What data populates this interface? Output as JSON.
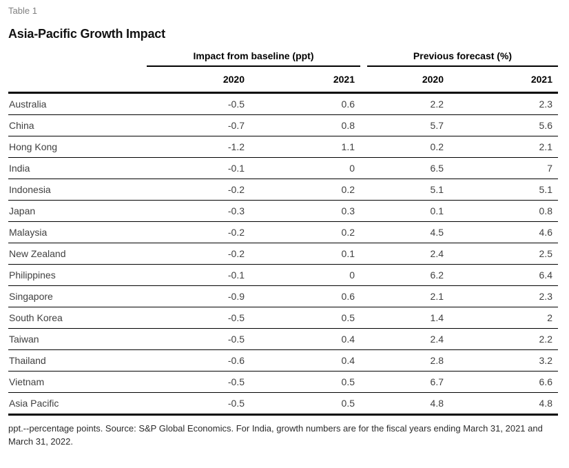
{
  "page": {
    "eyebrow": "Table 1",
    "title": "Asia-Pacific Growth Impact",
    "footnote": "ppt.--percentage points. Source: S&P Global Economics. For India, growth numbers are for the fiscal years ending March 31, 2021 and March 31, 2022."
  },
  "colors": {
    "rule_black": "#000000",
    "body_text_gray": "#404040",
    "eyebrow_gray": "#7f7f7f"
  },
  "table": {
    "col_groups": [
      {
        "label": "Impact from baseline (ppt)",
        "years": [
          "2020",
          "2021"
        ]
      },
      {
        "label": "Previous forecast (%)",
        "years": [
          "2020",
          "2021"
        ]
      }
    ],
    "rows": [
      {
        "country": "Australia",
        "values": [
          "-0.5",
          "0.6",
          "2.2",
          "2.3"
        ]
      },
      {
        "country": "China",
        "values": [
          "-0.7",
          "0.8",
          "5.7",
          "5.6"
        ]
      },
      {
        "country": "Hong Kong",
        "values": [
          "-1.2",
          "1.1",
          "0.2",
          "2.1"
        ]
      },
      {
        "country": "India",
        "values": [
          "-0.1",
          "0",
          "6.5",
          "7"
        ]
      },
      {
        "country": "Indonesia",
        "values": [
          "-0.2",
          "0.2",
          "5.1",
          "5.1"
        ]
      },
      {
        "country": "Japan",
        "values": [
          "-0.3",
          "0.3",
          "0.1",
          "0.8"
        ]
      },
      {
        "country": "Malaysia",
        "values": [
          "-0.2",
          "0.2",
          "4.5",
          "4.6"
        ]
      },
      {
        "country": "New Zealand",
        "values": [
          "-0.2",
          "0.1",
          "2.4",
          "2.5"
        ]
      },
      {
        "country": "Philippines",
        "values": [
          "-0.1",
          "0",
          "6.2",
          "6.4"
        ]
      },
      {
        "country": "Singapore",
        "values": [
          "-0.9",
          "0.6",
          "2.1",
          "2.3"
        ]
      },
      {
        "country": "South Korea",
        "values": [
          "-0.5",
          "0.5",
          "1.4",
          "2"
        ]
      },
      {
        "country": "Taiwan",
        "values": [
          "-0.5",
          "0.4",
          "2.4",
          "2.2"
        ]
      },
      {
        "country": "Thailand",
        "values": [
          "-0.6",
          "0.4",
          "2.8",
          "3.2"
        ]
      },
      {
        "country": "Vietnam",
        "values": [
          "-0.5",
          "0.5",
          "6.7",
          "6.6"
        ]
      },
      {
        "country": "Asia Pacific",
        "values": [
          "-0.5",
          "0.5",
          "4.8",
          "4.8"
        ]
      }
    ]
  }
}
